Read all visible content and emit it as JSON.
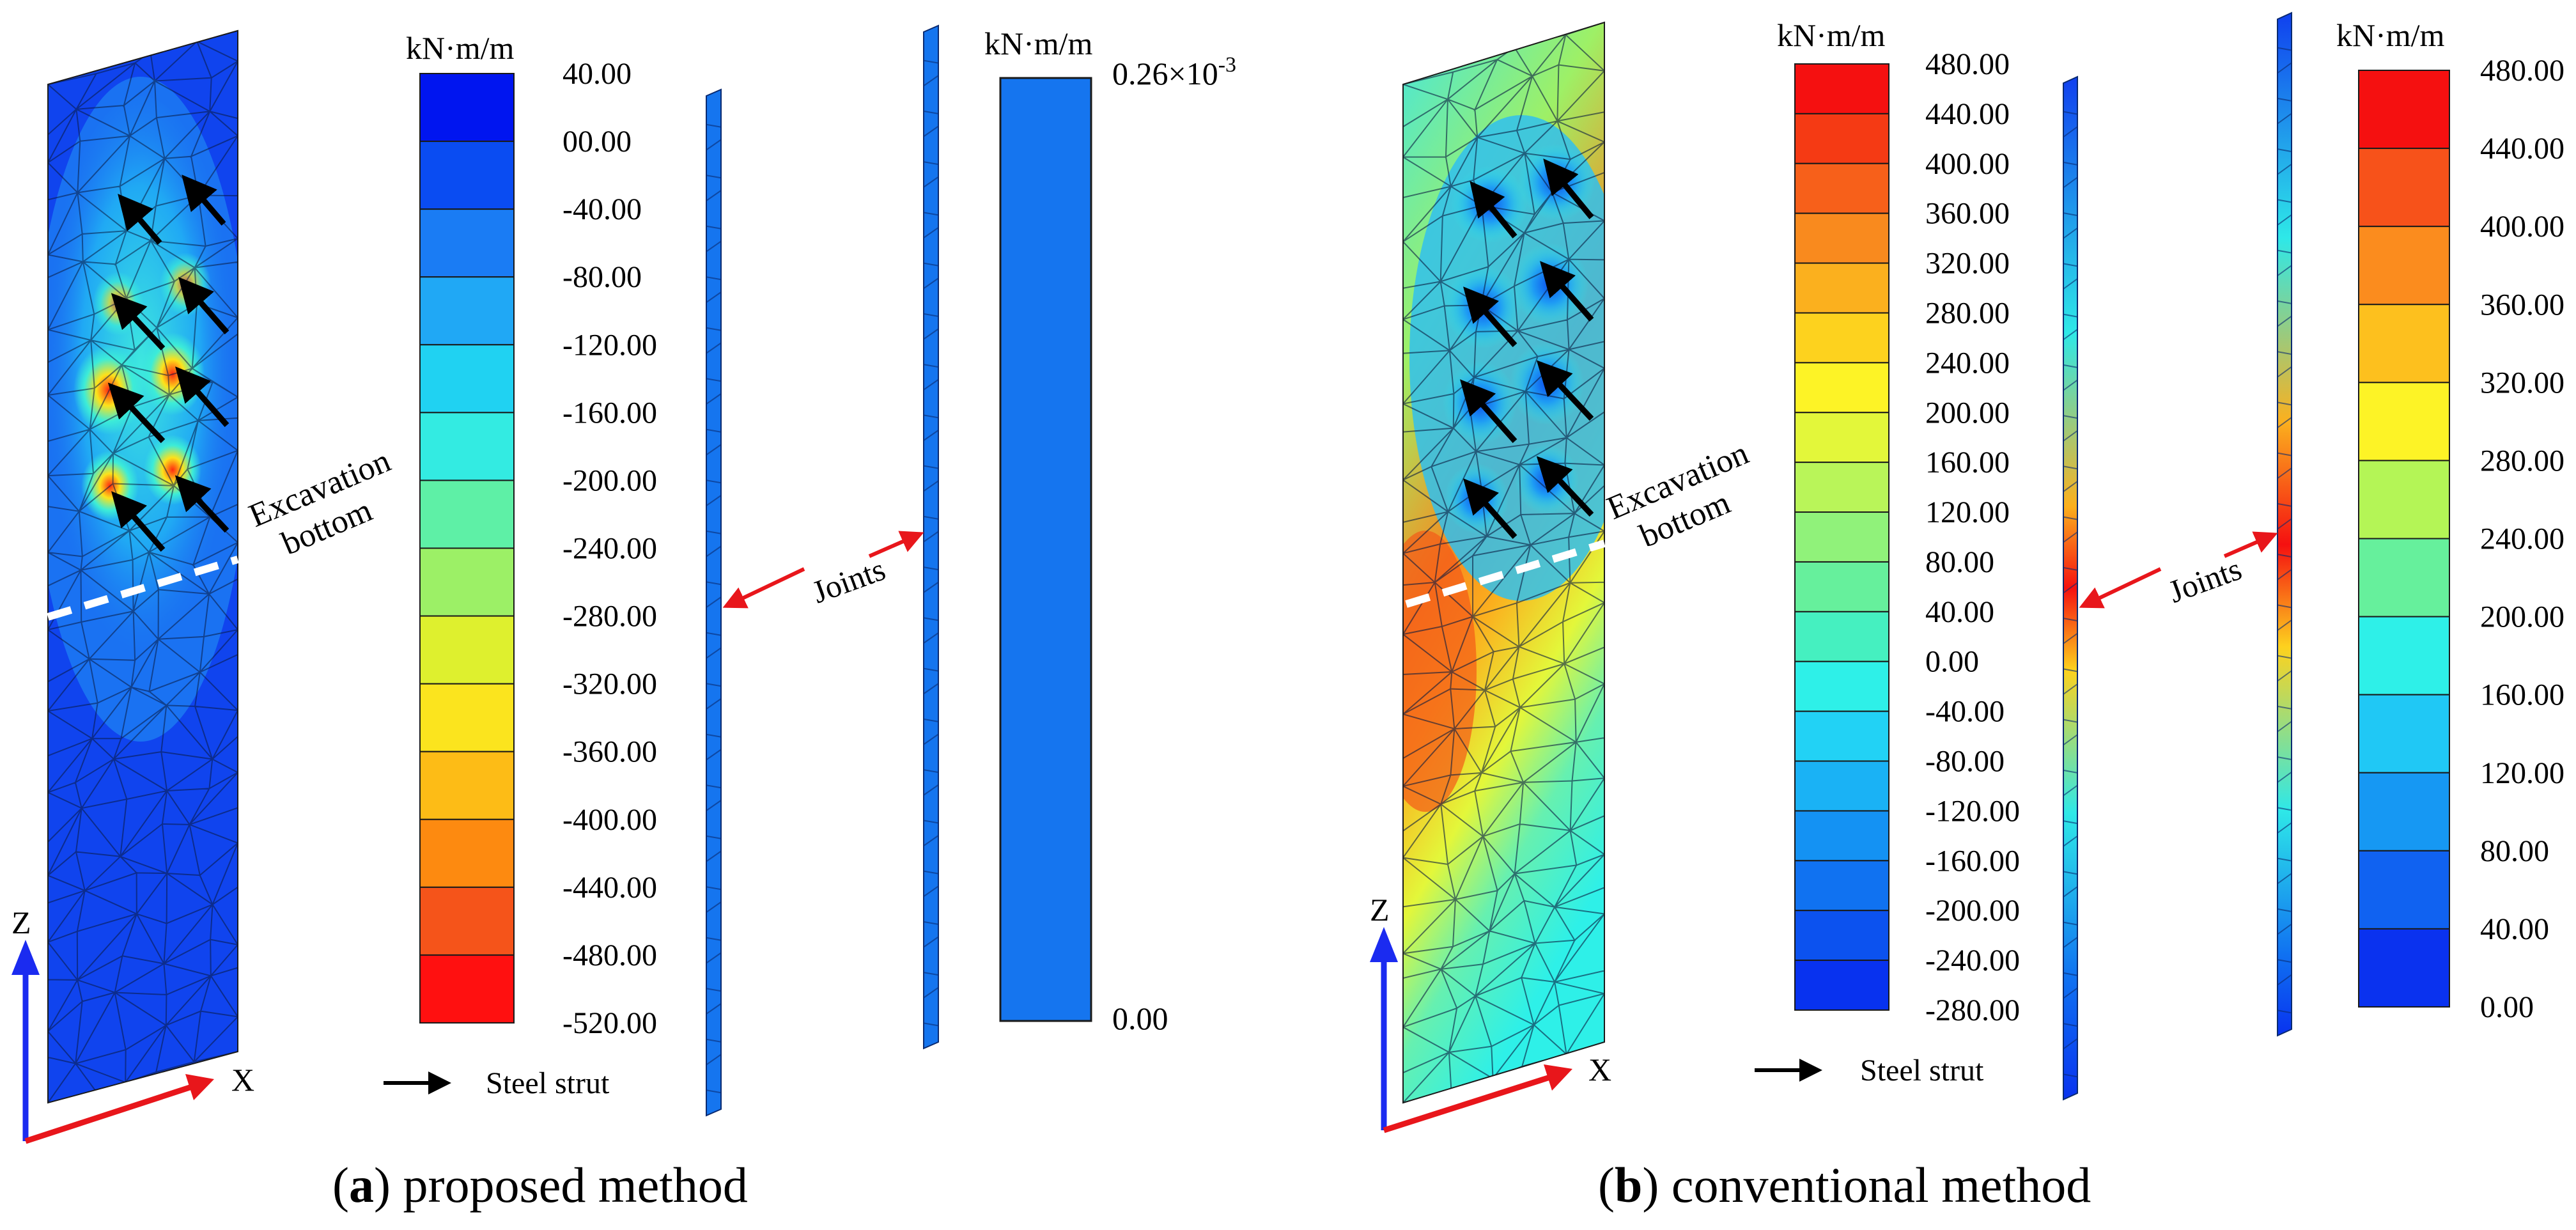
{
  "panel_a": {
    "caption_letter": "a",
    "caption_text": " proposed method",
    "legend_unit": "kN·m/m",
    "legend_ticks": [
      "40.00",
      "00.00",
      "-40.00",
      "-80.00",
      "-120.00",
      "-160.00",
      "-200.00",
      "-240.00",
      "-280.00",
      "-320.00",
      "-360.00",
      "-400.00",
      "-440.00",
      "-480.00",
      "-520.00"
    ],
    "legend_colors": [
      "#0015f0",
      "#0a4cf2",
      "#1a7cf4",
      "#20a8f5",
      "#20d2f2",
      "#33ebe2",
      "#5ef0a6",
      "#9cf066",
      "#def02e",
      "#fbe41e",
      "#fdbc16",
      "#fd8a10",
      "#f5541a",
      "#ff1010"
    ],
    "joint_unit": "kN·m/m",
    "joint_top": "0.26×10",
    "joint_top_exp": "-3",
    "joint_bottom": "0.00",
    "joint_color": "#1575ef",
    "excavation_line1": "Excavation",
    "excavation_line2": "bottom",
    "joints_label": "Joints",
    "strut_label": "Steel strut",
    "axis_z": "Z",
    "axis_x": "X"
  },
  "panel_b": {
    "caption_letter": "b",
    "caption_text": " conventional method",
    "legend_unit": "kN·m/m",
    "legend_ticks": [
      "480.00",
      "440.00",
      "400.00",
      "360.00",
      "320.00",
      "280.00",
      "240.00",
      "200.00",
      "160.00",
      "120.00",
      "80.00",
      "40.00",
      "0.00",
      "-40.00",
      "-80.00",
      "-120.00",
      "-160.00",
      "-200.00",
      "-240.00",
      "-280.00"
    ],
    "legend_colors": [
      "#f51010",
      "#f53a14",
      "#f7601a",
      "#f98a1e",
      "#fbb01e",
      "#fdd21e",
      "#fdf326",
      "#e3f73a",
      "#b9f559",
      "#90f27a",
      "#66f09c",
      "#45f0c0",
      "#2ef0e8",
      "#22d2f5",
      "#1ab2f5",
      "#1492f3",
      "#1072f1",
      "#0c52ef",
      "#0832ef"
    ],
    "joint_unit": "kN·m/m",
    "joint_ticks": [
      "480.00",
      "440.00",
      "400.00",
      "360.00",
      "320.00",
      "280.00",
      "240.00",
      "200.00",
      "160.00",
      "120.00",
      "80.00",
      "40.00",
      "0.00"
    ],
    "joint_colors": [
      "#f51010",
      "#f7521a",
      "#fb8c1e",
      "#fdc01e",
      "#fdf326",
      "#b4f556",
      "#66f09c",
      "#2ef0e8",
      "#20c8f5",
      "#1698f3",
      "#1062f1",
      "#0a32ef"
    ],
    "excavation_line1": "Excavation",
    "excavation_line2": "bottom",
    "joints_label": "Joints",
    "strut_label": "Steel strut",
    "axis_z": "Z",
    "axis_x": "X"
  }
}
